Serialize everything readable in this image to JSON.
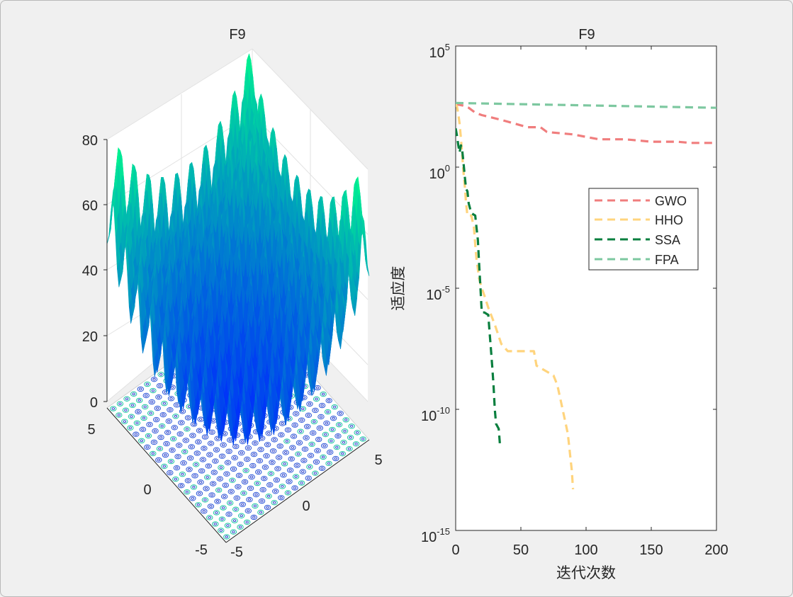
{
  "window": {
    "background": "#f0f0f0"
  },
  "chart_data": [
    {
      "type": "surface3d",
      "title": "F9",
      "zlim": [
        0,
        80
      ],
      "zticks": [
        "0",
        "20",
        "40",
        "60",
        "80"
      ],
      "xlim": [
        -5,
        5
      ],
      "xticks": [
        "-5",
        "0",
        "5"
      ],
      "ylim": [
        -5,
        5
      ],
      "yticks": [
        "-5",
        "0",
        "5"
      ],
      "function": "Rastrigin: 10*d + sum(x_i^2 - 10*cos(2*pi*x_i)), d=2",
      "colormap": [
        "#0000ff",
        "#00ff80"
      ],
      "contour_projection": true
    },
    {
      "type": "line",
      "title": "F9",
      "xlabel": "迭代次数",
      "ylabel": "适应度",
      "yscale": "log",
      "xlim": [
        0,
        200
      ],
      "ylim_exponents": [
        -15,
        5
      ],
      "xticks": [
        "0",
        "50",
        "100",
        "150",
        "200"
      ],
      "yticks": [
        {
          "base": "10",
          "exp": "5",
          "value_exp": 5
        },
        {
          "base": "10",
          "exp": "0",
          "value_exp": 0
        },
        {
          "base": "10",
          "exp": "-5",
          "value_exp": -5
        },
        {
          "base": "10",
          "exp": "-10",
          "value_exp": -10
        },
        {
          "base": "10",
          "exp": "-15",
          "value_exp": -15
        }
      ],
      "legend_position": "upper-right-inside",
      "series": [
        {
          "name": "GWO",
          "color": "#f07d7d",
          "points": [
            [
              0,
              2.6
            ],
            [
              5,
              2.55
            ],
            [
              10,
              2.45
            ],
            [
              15,
              2.25
            ],
            [
              20,
              2.15
            ],
            [
              35,
              1.95
            ],
            [
              45,
              1.8
            ],
            [
              55,
              1.65
            ],
            [
              65,
              1.65
            ],
            [
              70,
              1.45
            ],
            [
              80,
              1.4
            ],
            [
              90,
              1.35
            ],
            [
              100,
              1.25
            ],
            [
              110,
              1.15
            ],
            [
              130,
              1.15
            ],
            [
              140,
              1.1
            ],
            [
              150,
              1.05
            ],
            [
              170,
              1.05
            ],
            [
              180,
              1.0
            ],
            [
              200,
              1.0
            ]
          ]
        },
        {
          "name": "HHO",
          "color": "#ffd47d",
          "points": [
            [
              0,
              2.6
            ],
            [
              1,
              2.5
            ],
            [
              2,
              2.2
            ],
            [
              3,
              1.8
            ],
            [
              4,
              1.2
            ],
            [
              5,
              0.5
            ],
            [
              6,
              -0.2
            ],
            [
              7,
              -0.8
            ],
            [
              8,
              -1.5
            ],
            [
              9,
              -2.0
            ],
            [
              12,
              -2.0
            ],
            [
              14,
              -2.5
            ],
            [
              15,
              -3.2
            ],
            [
              16,
              -3.8
            ],
            [
              17,
              -4.2
            ],
            [
              18,
              -4.6
            ],
            [
              20,
              -5.0
            ],
            [
              22,
              -5.3
            ],
            [
              25,
              -5.8
            ],
            [
              30,
              -6.5
            ],
            [
              35,
              -7.3
            ],
            [
              40,
              -7.6
            ],
            [
              60,
              -7.6
            ],
            [
              62,
              -8.2
            ],
            [
              75,
              -8.6
            ],
            [
              78,
              -9.0
            ],
            [
              80,
              -9.5
            ],
            [
              82,
              -10.0
            ],
            [
              84,
              -10.5
            ],
            [
              86,
              -11.0
            ],
            [
              87,
              -11.5
            ],
            [
              88,
              -12.0
            ],
            [
              89,
              -12.5
            ],
            [
              90,
              -13.3
            ]
          ]
        },
        {
          "name": "SSA",
          "color": "#0a7f3f",
          "points": [
            [
              0,
              1.6
            ],
            [
              1,
              1.3
            ],
            [
              2,
              0.9
            ],
            [
              3,
              0.6
            ],
            [
              4,
              0.9
            ],
            [
              5,
              0.7
            ],
            [
              6,
              0.2
            ],
            [
              7,
              -0.4
            ],
            [
              8,
              -0.9
            ],
            [
              9,
              -1.0
            ],
            [
              10,
              -1.5
            ],
            [
              12,
              -1.9
            ],
            [
              15,
              -2.0
            ],
            [
              16,
              -2.5
            ],
            [
              17,
              -3.0
            ],
            [
              18,
              -4.0
            ],
            [
              19,
              -5.0
            ],
            [
              20,
              -6.0
            ],
            [
              22,
              -6.0
            ],
            [
              25,
              -6.1
            ],
            [
              26,
              -6.8
            ],
            [
              27,
              -7.5
            ],
            [
              28,
              -8.2
            ],
            [
              29,
              -9.0
            ],
            [
              30,
              -10.0
            ],
            [
              31,
              -10.6
            ],
            [
              33,
              -10.8
            ],
            [
              34,
              -11.5
            ]
          ]
        },
        {
          "name": "FPA",
          "color": "#7dc8a0",
          "points": [
            [
              0,
              2.65
            ],
            [
              50,
              2.6
            ],
            [
              100,
              2.55
            ],
            [
              150,
              2.5
            ],
            [
              200,
              2.45
            ]
          ]
        }
      ]
    }
  ]
}
